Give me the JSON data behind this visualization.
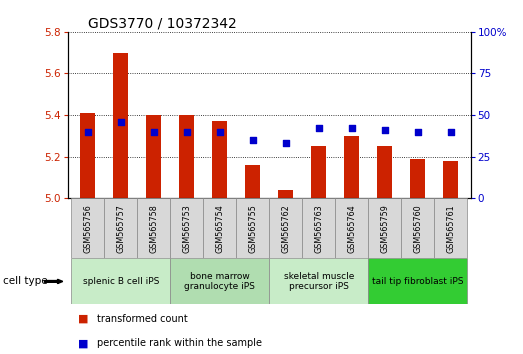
{
  "title": "GDS3770 / 10372342",
  "categories": [
    "GSM565756",
    "GSM565757",
    "GSM565758",
    "GSM565753",
    "GSM565754",
    "GSM565755",
    "GSM565762",
    "GSM565763",
    "GSM565764",
    "GSM565759",
    "GSM565760",
    "GSM565761"
  ],
  "bar_values": [
    5.41,
    5.7,
    5.4,
    5.4,
    5.37,
    5.16,
    5.04,
    5.25,
    5.3,
    5.25,
    5.19,
    5.18
  ],
  "dot_values": [
    40,
    46,
    40,
    40,
    40,
    35,
    33,
    42,
    42,
    41,
    40,
    40
  ],
  "ylim_left": [
    5.0,
    5.8
  ],
  "ylim_right": [
    0,
    100
  ],
  "yticks_left": [
    5.0,
    5.2,
    5.4,
    5.6,
    5.8
  ],
  "yticks_right": [
    0,
    25,
    50,
    75,
    100
  ],
  "bar_color": "#cc2200",
  "dot_color": "#0000cc",
  "bar_bottom": 5.0,
  "cell_type_groups": [
    {
      "label": "splenic B cell iPS",
      "start": 0,
      "end": 3,
      "color": "#c8ecc8"
    },
    {
      "label": "bone marrow\ngranulocyte iPS",
      "start": 3,
      "end": 6,
      "color": "#b0ddb0"
    },
    {
      "label": "skeletal muscle\nprecursor iPS",
      "start": 6,
      "end": 9,
      "color": "#c8ecc8"
    },
    {
      "label": "tail tip fibroblast iPS",
      "start": 9,
      "end": 12,
      "color": "#33cc33"
    }
  ],
  "legend_label_bar": "transformed count",
  "legend_label_dot": "percentile rank within the sample",
  "cell_type_label": "cell type",
  "title_fontsize": 10,
  "tick_fontsize": 7.5,
  "label_fontsize": 8
}
